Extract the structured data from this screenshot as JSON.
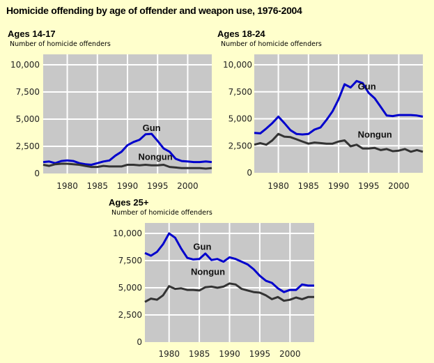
{
  "title": "Homicide offending by age of offender and weapon use, 1976-2004",
  "colors": {
    "background": "#FFFFCC",
    "plot": "#C8C8C8",
    "grid": "#FFFFFF",
    "gun": "#0000CC",
    "nongun": "#333333"
  },
  "chart_data": [
    {
      "type": "line",
      "title": "Ages 14-17",
      "ylabel": "Number of homicide offenders",
      "xlabel": "",
      "xlim": [
        1976,
        2004
      ],
      "ylim": [
        0,
        11000
      ],
      "grid": true,
      "x_ticks": [
        "1980",
        "1985",
        "1990",
        "1995",
        "2000"
      ],
      "y_ticks": [
        "0",
        "2,500",
        "5,000",
        "7,500",
        "10,000"
      ],
      "x": [
        1976,
        1977,
        1978,
        1979,
        1980,
        1981,
        1982,
        1983,
        1984,
        1985,
        1986,
        1987,
        1988,
        1989,
        1990,
        1991,
        1992,
        1993,
        1994,
        1995,
        1996,
        1997,
        1998,
        1999,
        2000,
        2001,
        2002,
        2003,
        2004
      ],
      "series": [
        {
          "name": "Gun",
          "values": [
            1050,
            1100,
            950,
            1150,
            1200,
            1150,
            950,
            850,
            800,
            950,
            1100,
            1200,
            1650,
            2000,
            2600,
            2900,
            3100,
            3600,
            3650,
            3000,
            2300,
            2000,
            1350,
            1150,
            1100,
            1050,
            1050,
            1100,
            1050
          ]
        },
        {
          "name": "Nongun",
          "values": [
            800,
            700,
            850,
            900,
            900,
            850,
            800,
            700,
            600,
            600,
            700,
            650,
            650,
            650,
            800,
            800,
            750,
            800,
            750,
            750,
            800,
            600,
            550,
            500,
            500,
            500,
            500,
            450,
            500
          ]
        }
      ]
    },
    {
      "type": "line",
      "title": "Ages 18-24",
      "ylabel": "Number of homicide offenders",
      "xlabel": "",
      "xlim": [
        1976,
        2004
      ],
      "ylim": [
        0,
        11000
      ],
      "grid": true,
      "x_ticks": [
        "1980",
        "1985",
        "1990",
        "1995",
        "2000"
      ],
      "y_ticks": [
        "0",
        "2,500",
        "5,000",
        "7,500",
        "10,000"
      ],
      "x": [
        1976,
        1977,
        1978,
        1979,
        1980,
        1981,
        1982,
        1983,
        1984,
        1985,
        1986,
        1987,
        1988,
        1989,
        1990,
        1991,
        1992,
        1993,
        1994,
        1995,
        1996,
        1997,
        1998,
        1999,
        2000,
        2001,
        2002,
        2003,
        2004
      ],
      "series": [
        {
          "name": "Gun",
          "values": [
            3700,
            3650,
            4100,
            4600,
            5200,
            4600,
            3950,
            3600,
            3550,
            3600,
            4000,
            4200,
            4900,
            5700,
            6800,
            8200,
            7900,
            8500,
            8300,
            7400,
            6900,
            6100,
            5300,
            5250,
            5350,
            5350,
            5350,
            5300,
            5200
          ]
        },
        {
          "name": "Nongun",
          "values": [
            2600,
            2750,
            2600,
            3000,
            3600,
            3350,
            3300,
            3100,
            2900,
            2700,
            2800,
            2750,
            2700,
            2700,
            2900,
            3000,
            2450,
            2600,
            2250,
            2250,
            2300,
            2100,
            2200,
            2000,
            2050,
            2200,
            1950,
            2100,
            1950
          ]
        }
      ]
    },
    {
      "type": "line",
      "title": "Ages 25+",
      "ylabel": "Number of homicide offenders",
      "xlabel": "",
      "xlim": [
        1976,
        2004
      ],
      "ylim": [
        0,
        11000
      ],
      "grid": true,
      "x_ticks": [
        "1980",
        "1985",
        "1990",
        "1995",
        "2000"
      ],
      "y_ticks": [
        "0",
        "2,500",
        "5,000",
        "7,500",
        "10,000"
      ],
      "x": [
        1976,
        1977,
        1978,
        1979,
        1980,
        1981,
        1982,
        1983,
        1984,
        1985,
        1986,
        1987,
        1988,
        1989,
        1990,
        1991,
        1992,
        1993,
        1994,
        1995,
        1996,
        1997,
        1998,
        1999,
        2000,
        2001,
        2002,
        2003,
        2004
      ],
      "series": [
        {
          "name": "Gun",
          "values": [
            8200,
            7950,
            8300,
            9000,
            10000,
            9600,
            8600,
            7750,
            7600,
            7650,
            8150,
            7550,
            7650,
            7400,
            7800,
            7650,
            7400,
            7150,
            6700,
            6100,
            5650,
            5450,
            4950,
            4600,
            4800,
            4800,
            5300,
            5200,
            5200
          ]
        },
        {
          "name": "Nongun",
          "values": [
            3700,
            4000,
            3900,
            4300,
            5150,
            4900,
            4950,
            4800,
            4800,
            4750,
            5050,
            5100,
            5000,
            5100,
            5400,
            5300,
            4900,
            4750,
            4600,
            4550,
            4300,
            3950,
            4150,
            3800,
            3900,
            4100,
            3950,
            4150,
            4150
          ]
        }
      ]
    }
  ]
}
